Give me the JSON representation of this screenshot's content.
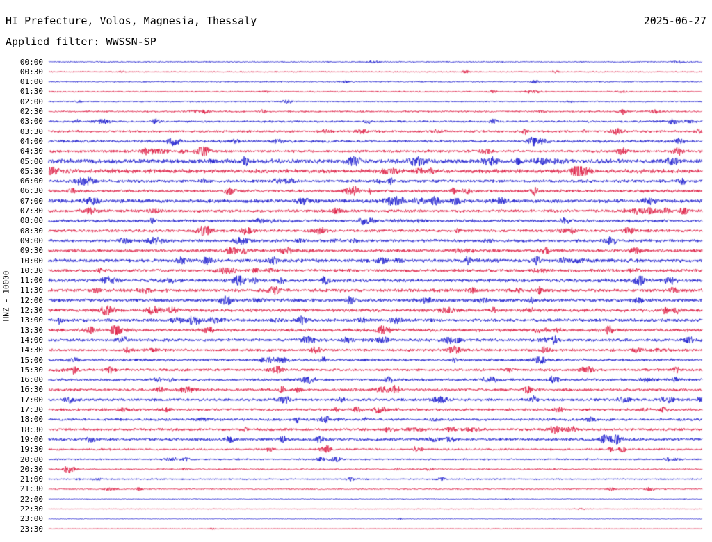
{
  "header": {
    "title": "HI Prefecture, Volos, Magnesia, Thessaly",
    "date": "2025-06-27",
    "filter_label": "Applied filter: WWSSN-SP"
  },
  "y_axis": {
    "label": "HNZ - 10000"
  },
  "chart_data": {
    "type": "line",
    "subtype": "helicorder-seismogram",
    "title": "HI Prefecture, Volos, Magnesia, Thessaly",
    "date": "2025-06-27",
    "filter": "WWSSN-SP",
    "channel": "HNZ",
    "scale": "10000",
    "row_interval_minutes": 30,
    "time_range": [
      "00:00",
      "23:30"
    ],
    "legend": "alternating blue/red traces per half-hour row",
    "grid": false,
    "colors": {
      "blue": "#1515cd",
      "red": "#dc143c",
      "text": "#000000",
      "background": "#ffffff"
    },
    "bursts_format": [
      "position_fraction_of_row",
      "envelope_amplitude_px",
      "width_fraction_of_row"
    ],
    "rows": [
      {
        "time": "00:00",
        "color": "blue",
        "base": 0.4,
        "random_bursts": 2
      },
      {
        "time": "00:30",
        "color": "red",
        "base": 0.4,
        "random_bursts": 2,
        "bursts": [
          [
            0.638,
            1.5,
            0.005
          ]
        ]
      },
      {
        "time": "01:00",
        "color": "blue",
        "base": 0.45,
        "random_bursts": 3
      },
      {
        "time": "01:30",
        "color": "red",
        "base": 0.5,
        "random_bursts": 3,
        "bursts": [
          [
            0.68,
            1.3,
            0.005
          ]
        ]
      },
      {
        "time": "02:00",
        "color": "blue",
        "base": 0.45,
        "random_bursts": 3
      },
      {
        "time": "02:30",
        "color": "red",
        "base": 0.55,
        "random_bursts": 4,
        "bursts": [
          [
            0.24,
            1.2,
            0.006
          ],
          [
            0.878,
            2.6,
            0.006
          ]
        ]
      },
      {
        "time": "03:00",
        "color": "blue",
        "base": 0.7,
        "random_bursts": 5,
        "bursts": [
          [
            0.68,
            1.5,
            0.006
          ],
          [
            0.955,
            2.2,
            0.008
          ]
        ]
      },
      {
        "time": "03:30",
        "color": "red",
        "base": 0.8,
        "random_bursts": 5,
        "bursts": [
          [
            0.48,
            2.2,
            0.008
          ],
          [
            0.87,
            2.2,
            0.009
          ]
        ]
      },
      {
        "time": "04:00",
        "color": "blue",
        "base": 0.9,
        "random_bursts": 6,
        "bursts": [
          [
            0.19,
            1.9,
            0.007
          ],
          [
            0.963,
            2.2,
            0.007
          ]
        ]
      },
      {
        "time": "04:30",
        "color": "red",
        "base": 0.9,
        "random_bursts": 6,
        "bursts": [
          [
            0.24,
            2.8,
            0.008
          ],
          [
            0.67,
            1.8,
            0.007
          ],
          [
            0.96,
            2.2,
            0.007
          ]
        ]
      },
      {
        "time": "05:00",
        "color": "blue",
        "base": 1.5,
        "random_bursts": 8
      },
      {
        "time": "05:30",
        "color": "red",
        "base": 1.35,
        "random_bursts": 8
      },
      {
        "time": "06:00",
        "color": "blue",
        "base": 1.0,
        "random_bursts": 7,
        "bursts": [
          [
            0.97,
            2.0,
            0.007
          ]
        ]
      },
      {
        "time": "06:30",
        "color": "red",
        "base": 1.0,
        "random_bursts": 7,
        "bursts": [
          [
            0.037,
            1.9,
            0.007
          ],
          [
            0.64,
            1.8,
            0.007
          ]
        ]
      },
      {
        "time": "07:00",
        "color": "blue",
        "base": 1.2,
        "random_bursts": 8,
        "bursts": [
          [
            0.92,
            2.6,
            0.009
          ]
        ]
      },
      {
        "time": "07:30",
        "color": "red",
        "base": 1.0,
        "random_bursts": 7,
        "bursts": [
          [
            0.9,
            1.8,
            0.007
          ]
        ]
      },
      {
        "time": "08:00",
        "color": "blue",
        "base": 1.0,
        "random_bursts": 7,
        "bursts": [
          [
            0.79,
            1.8,
            0.007
          ]
        ]
      },
      {
        "time": "08:30",
        "color": "red",
        "base": 1.0,
        "random_bursts": 7,
        "bursts": [
          [
            0.8,
            1.6,
            0.007
          ]
        ]
      },
      {
        "time": "09:00",
        "color": "blue",
        "base": 1.0,
        "random_bursts": 7,
        "bursts": [
          [
            0.117,
            2.0,
            0.008
          ]
        ]
      },
      {
        "time": "09:30",
        "color": "red",
        "base": 1.0,
        "random_bursts": 7,
        "bursts": [
          [
            0.3,
            1.8,
            0.007
          ]
        ]
      },
      {
        "time": "10:00",
        "color": "blue",
        "base": 1.2,
        "random_bursts": 8,
        "bursts": [
          [
            0.51,
            2.0,
            0.008
          ]
        ]
      },
      {
        "time": "10:30",
        "color": "red",
        "base": 1.0,
        "random_bursts": 7,
        "bursts": [
          [
            0.28,
            2.0,
            0.007
          ]
        ]
      },
      {
        "time": "11:00",
        "color": "blue",
        "base": 1.2,
        "random_bursts": 8,
        "bursts": [
          [
            0.29,
            2.6,
            0.009
          ]
        ]
      },
      {
        "time": "11:30",
        "color": "red",
        "base": 1.1,
        "random_bursts": 7
      },
      {
        "time": "12:00",
        "color": "blue",
        "base": 1.1,
        "random_bursts": 7,
        "bursts": [
          [
            0.27,
            2.0,
            0.008
          ]
        ]
      },
      {
        "time": "12:30",
        "color": "red",
        "base": 1.1,
        "random_bursts": 7,
        "bursts": [
          [
            0.19,
            2.3,
            0.007
          ],
          [
            0.96,
            2.3,
            0.007
          ]
        ]
      },
      {
        "time": "13:00",
        "color": "blue",
        "base": 1.1,
        "random_bursts": 7,
        "bursts": [
          [
            0.48,
            2.0,
            0.007
          ]
        ]
      },
      {
        "time": "13:30",
        "color": "red",
        "base": 1.1,
        "random_bursts": 7,
        "bursts": [
          [
            0.064,
            2.6,
            0.008
          ],
          [
            0.245,
            2.0,
            0.007
          ]
        ]
      },
      {
        "time": "14:00",
        "color": "blue",
        "base": 1.0,
        "random_bursts": 7,
        "bursts": [
          [
            0.4,
            2.3,
            0.007
          ],
          [
            0.98,
            2.3,
            0.007
          ]
        ]
      },
      {
        "time": "14:30",
        "color": "red",
        "base": 0.9,
        "random_bursts": 6,
        "bursts": [
          [
            0.9,
            1.7,
            0.007
          ]
        ]
      },
      {
        "time": "15:00",
        "color": "blue",
        "base": 0.9,
        "random_bursts": 6,
        "bursts": [
          [
            0.42,
            2.0,
            0.007
          ]
        ]
      },
      {
        "time": "15:30",
        "color": "red",
        "base": 0.9,
        "random_bursts": 6,
        "bursts": [
          [
            0.96,
            2.0,
            0.007
          ]
        ]
      },
      {
        "time": "16:00",
        "color": "blue",
        "base": 0.9,
        "random_bursts": 6,
        "bursts": [
          [
            0.52,
            2.0,
            0.008
          ],
          [
            0.96,
            2.0,
            0.007
          ]
        ]
      },
      {
        "time": "16:30",
        "color": "red",
        "base": 0.9,
        "random_bursts": 6,
        "bursts": [
          [
            0.17,
            1.7,
            0.007
          ]
        ]
      },
      {
        "time": "17:00",
        "color": "blue",
        "base": 0.9,
        "random_bursts": 6,
        "bursts": [
          [
            0.032,
            2.3,
            0.008
          ],
          [
            0.36,
            2.6,
            0.009
          ],
          [
            0.95,
            2.0,
            0.007
          ]
        ]
      },
      {
        "time": "17:30",
        "color": "red",
        "base": 0.9,
        "random_bursts": 6,
        "bursts": [
          [
            0.47,
            2.0,
            0.008
          ],
          [
            0.78,
            1.7,
            0.007
          ]
        ]
      },
      {
        "time": "18:00",
        "color": "blue",
        "base": 0.9,
        "random_bursts": 6,
        "bursts": [
          [
            0.42,
            1.7,
            0.007
          ],
          [
            0.83,
            1.7,
            0.007
          ]
        ]
      },
      {
        "time": "18:30",
        "color": "red",
        "base": 0.9,
        "random_bursts": 6,
        "bursts": [
          [
            0.52,
            2.0,
            0.007
          ],
          [
            0.8,
            2.0,
            0.007
          ]
        ]
      },
      {
        "time": "19:00",
        "color": "blue",
        "base": 0.9,
        "random_bursts": 6,
        "bursts": [
          [
            0.064,
            2.3,
            0.007
          ],
          [
            0.277,
            2.0,
            0.007
          ],
          [
            0.415,
            2.3,
            0.008
          ],
          [
            0.87,
            2.6,
            0.008
          ]
        ]
      },
      {
        "time": "19:30",
        "color": "red",
        "base": 0.7,
        "random_bursts": 5,
        "bursts": [
          [
            0.425,
            3.0,
            0.009
          ]
        ]
      },
      {
        "time": "20:00",
        "color": "blue",
        "base": 0.6,
        "random_bursts": 4,
        "bursts": [
          [
            0.44,
            2.0,
            0.008
          ]
        ]
      },
      {
        "time": "20:30",
        "color": "red",
        "base": 0.5,
        "random_bursts": 3,
        "bursts": [
          [
            0.032,
            3.5,
            0.008
          ]
        ]
      },
      {
        "time": "21:00",
        "color": "blue",
        "base": 0.5,
        "random_bursts": 3,
        "bursts": [
          [
            0.6,
            1.4,
            0.006
          ]
        ]
      },
      {
        "time": "21:30",
        "color": "red",
        "base": 0.45,
        "random_bursts": 3,
        "bursts": [
          [
            0.86,
            1.4,
            0.005
          ]
        ]
      },
      {
        "time": "22:00",
        "color": "blue",
        "base": 0.3,
        "random_bursts": 1
      },
      {
        "time": "22:30",
        "color": "red",
        "base": 0.25,
        "random_bursts": 1
      },
      {
        "time": "23:00",
        "color": "blue",
        "base": 0.25,
        "random_bursts": 1
      },
      {
        "time": "23:30",
        "color": "red",
        "base": 0.25,
        "random_bursts": 1
      }
    ]
  }
}
